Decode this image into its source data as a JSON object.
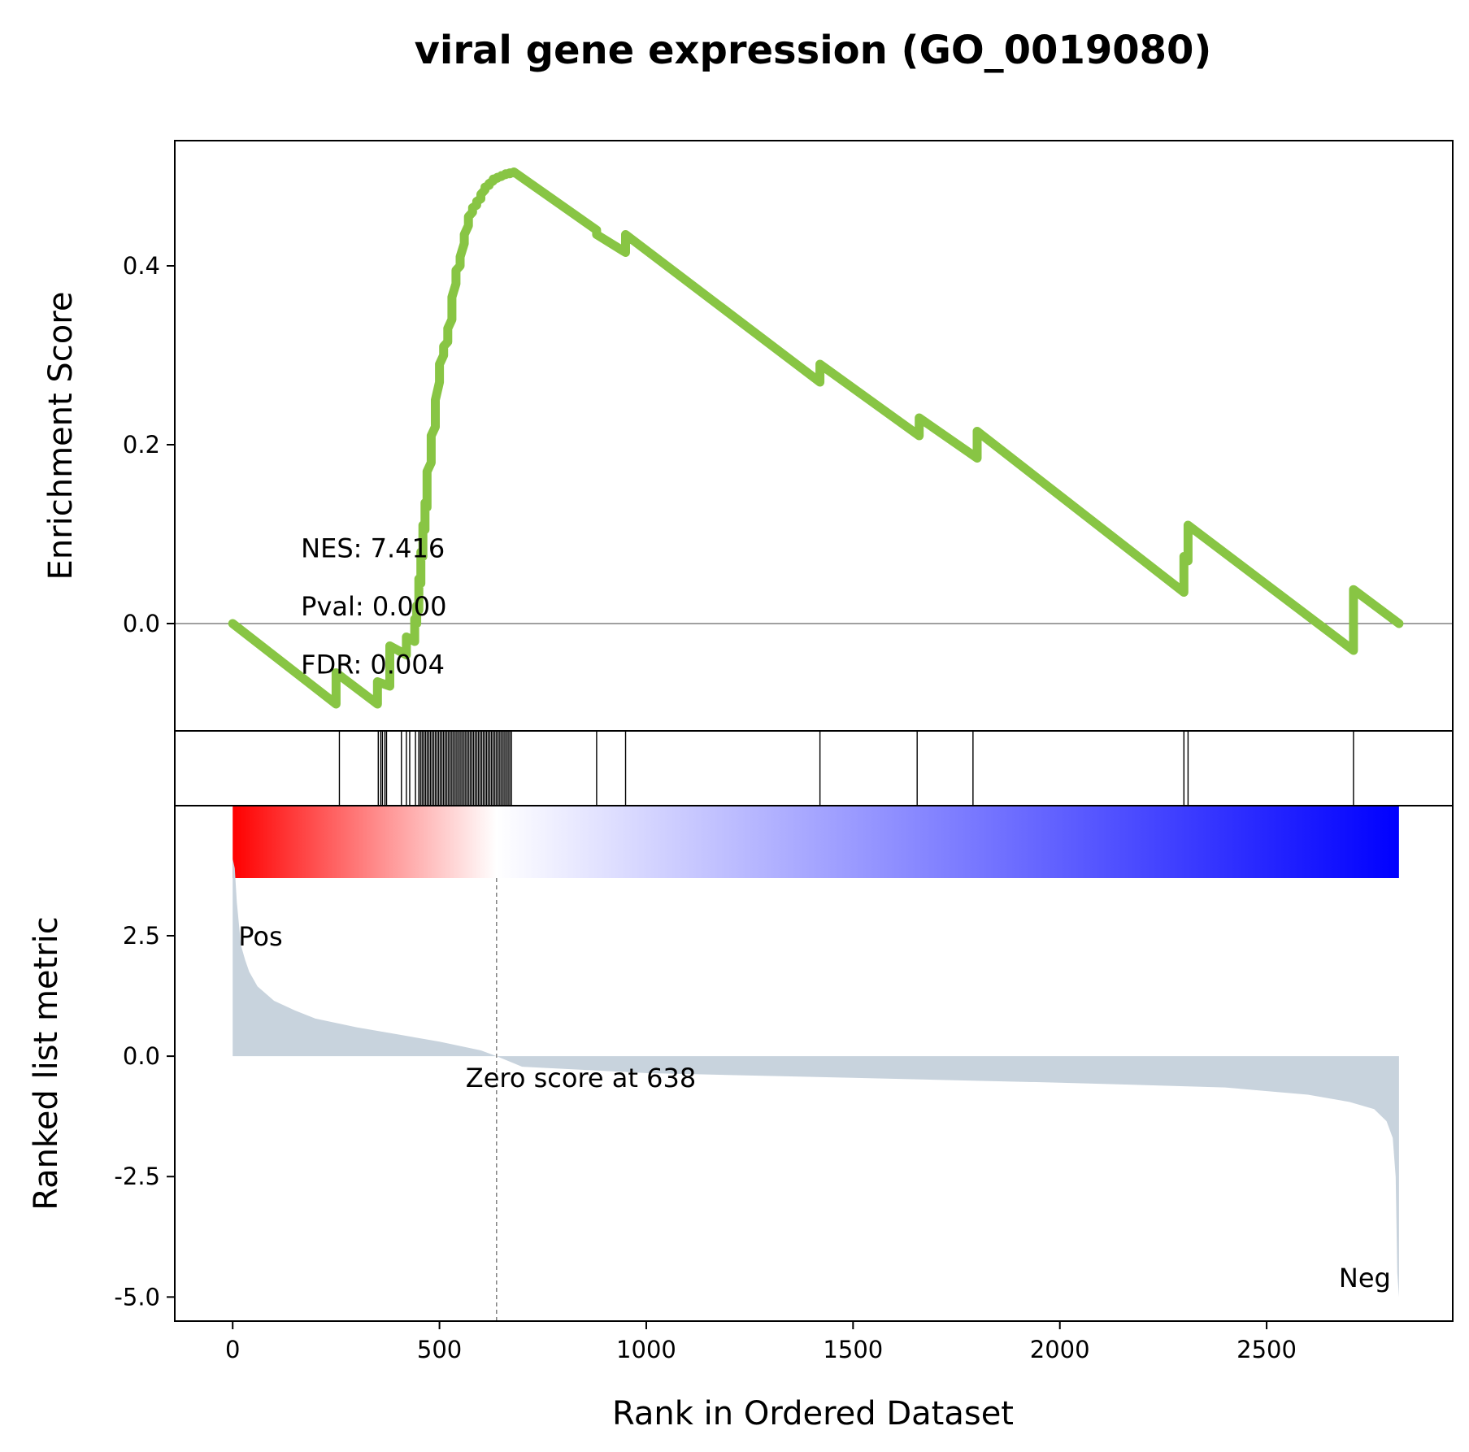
{
  "chart_data": {
    "type": "line",
    "title": "viral gene expression (GO_0019080)",
    "xlabel": "Rank in Ordered Dataset",
    "xlim": [
      -140,
      2950
    ],
    "xticks": [
      0,
      500,
      1000,
      1500,
      2000,
      2500
    ],
    "xtick_labels": [
      "0",
      "500",
      "1000",
      "1500",
      "2000",
      "2500"
    ],
    "top_panel": {
      "ylabel": "Enrichment Score",
      "ylim": [
        -0.12,
        0.54
      ],
      "yticks": [
        0.0,
        0.2,
        0.4
      ],
      "ytick_labels": [
        "0.0",
        "0.2",
        "0.4"
      ],
      "line_color": "#88c544",
      "zero_line_color": "#808080",
      "series": [
        {
          "x": [
            0,
            250,
            250,
            350,
            350,
            380,
            380,
            420,
            420,
            440,
            440,
            445,
            445,
            450,
            450,
            455,
            455,
            460,
            460,
            465,
            465,
            470,
            470,
            480,
            480,
            490,
            490,
            500,
            500,
            510,
            510,
            520,
            520,
            530,
            530,
            540,
            540,
            550,
            550,
            560,
            560,
            570,
            570,
            580,
            580,
            590,
            590,
            600,
            600,
            610,
            610,
            620,
            620,
            630,
            630,
            640,
            640,
            650,
            650,
            660,
            660,
            670,
            670,
            680,
            680,
            880,
            880,
            950,
            950,
            1420,
            1420,
            1660,
            1660,
            1800,
            1800,
            2300,
            2300,
            2310,
            2310,
            2710,
            2710,
            2820
          ],
          "y": [
            0.0,
            -0.09,
            -0.055,
            -0.09,
            -0.065,
            -0.07,
            -0.025,
            -0.035,
            -0.015,
            -0.02,
            0.005,
            0.0,
            0.02,
            0.015,
            0.05,
            0.045,
            0.08,
            0.075,
            0.11,
            0.105,
            0.135,
            0.13,
            0.17,
            0.18,
            0.21,
            0.22,
            0.25,
            0.27,
            0.29,
            0.3,
            0.31,
            0.315,
            0.33,
            0.34,
            0.365,
            0.38,
            0.395,
            0.4,
            0.41,
            0.425,
            0.435,
            0.445,
            0.455,
            0.46,
            0.465,
            0.468,
            0.472,
            0.475,
            0.48,
            0.485,
            0.488,
            0.49,
            0.492,
            0.495,
            0.497,
            0.498,
            0.499,
            0.5,
            0.501,
            0.502,
            0.503,
            0.503,
            0.504,
            0.504,
            0.505,
            0.44,
            0.435,
            0.415,
            0.435,
            0.27,
            0.29,
            0.21,
            0.23,
            0.185,
            0.215,
            0.035,
            0.075,
            0.07,
            0.11,
            -0.03,
            0.038,
            0.0
          ]
        }
      ],
      "annotations": [
        {
          "text": "NES: 7.416",
          "x": 165,
          "y": 0.085
        },
        {
          "text": "Pval: 0.000",
          "x": 165,
          "y": 0.02
        },
        {
          "text": "FDR: 0.004",
          "x": 165,
          "y": -0.045
        }
      ]
    },
    "hit_panel": {
      "hits": [
        258,
        352,
        358,
        362,
        368,
        372,
        408,
        420,
        428,
        442,
        450,
        454,
        458,
        462,
        466,
        470,
        474,
        478,
        482,
        486,
        490,
        494,
        498,
        502,
        506,
        510,
        514,
        518,
        522,
        526,
        530,
        534,
        538,
        542,
        546,
        550,
        554,
        558,
        562,
        566,
        570,
        574,
        578,
        582,
        586,
        590,
        594,
        598,
        602,
        606,
        610,
        614,
        618,
        622,
        626,
        630,
        634,
        638,
        642,
        646,
        650,
        654,
        658,
        662,
        666,
        670,
        674,
        880,
        950,
        1420,
        1655,
        1790,
        2300,
        2310,
        2710
      ]
    },
    "bottom_panel": {
      "ylabel": "Ranked list metric",
      "ylim": [
        -5.5,
        5.2
      ],
      "yticks": [
        2.5,
        0.0,
        -2.5,
        -5.0
      ],
      "ytick_labels": [
        "2.5",
        "0.0",
        "-2.5",
        "-5.0"
      ],
      "fill_color": "#c8d3dd",
      "gradient_colors": [
        "#ff0000",
        "#ffffff",
        "#0000ff"
      ],
      "colorbar_range": [
        0,
        2820
      ],
      "zero_score_rank": 638,
      "zero_score_text": "Zero score at 638",
      "pos_label": "Pos",
      "neg_label": "Neg",
      "pos_color": "#ff0000",
      "neg_color": "#0000ff",
      "metric_x": [
        0,
        5,
        10,
        20,
        30,
        40,
        60,
        80,
        100,
        150,
        200,
        300,
        400,
        500,
        600,
        638,
        700,
        1000,
        1500,
        2000,
        2400,
        2600,
        2700,
        2760,
        2790,
        2805,
        2812,
        2816,
        2820
      ],
      "metric_y": [
        4.1,
        3.9,
        3.2,
        2.3,
        2.0,
        1.75,
        1.45,
        1.3,
        1.15,
        0.95,
        0.78,
        0.6,
        0.45,
        0.3,
        0.12,
        0.0,
        -0.22,
        -0.35,
        -0.45,
        -0.55,
        -0.65,
        -0.8,
        -0.95,
        -1.1,
        -1.35,
        -1.7,
        -2.5,
        -4.5,
        -5.0
      ]
    }
  }
}
